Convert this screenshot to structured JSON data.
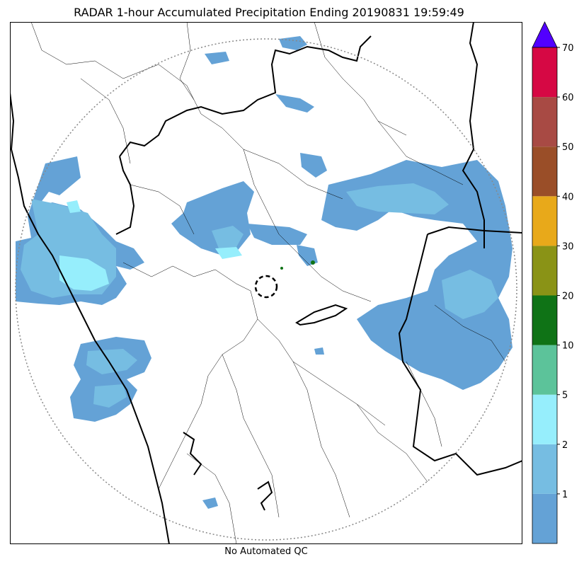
{
  "title": "RADAR 1-hour Accumulated Precipitation Ending 20190831 19:59:49",
  "footer": "No Automated QC",
  "colorbar": {
    "ticks": [
      "1",
      "2",
      "5",
      "10",
      "20",
      "30",
      "40",
      "50",
      "60",
      "70"
    ],
    "bins": [
      {
        "color": "#64a2d6"
      },
      {
        "color": "#76bde2"
      },
      {
        "color": "#96eefc"
      },
      {
        "color": "#5cc39a"
      },
      {
        "color": "#0f7316"
      },
      {
        "color": "#8a9316"
      },
      {
        "color": "#e8a91a"
      },
      {
        "color": "#9a4e28"
      },
      {
        "color": "#a84a44"
      },
      {
        "color": "#d60844"
      }
    ],
    "overflow_color": "#5200ff"
  },
  "colors": {
    "light_rain": "#64a2d6",
    "medium_rain": "#76bde2",
    "heavy_rain": "#96eefc",
    "boundary": "#000000",
    "range_ring": "#888888"
  }
}
